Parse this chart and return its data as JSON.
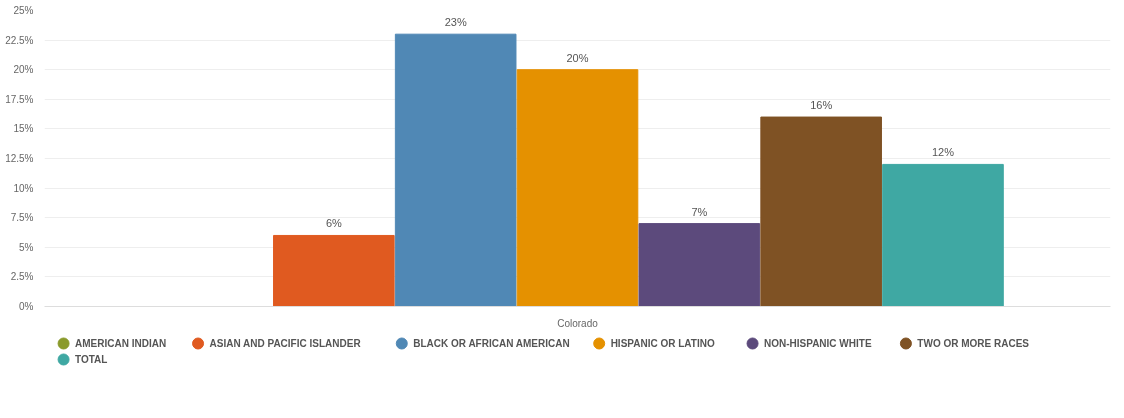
{
  "chart_data": {
    "type": "bar",
    "categories": [
      "Colorado"
    ],
    "series": [
      {
        "name": "AMERICAN INDIAN",
        "color": "#8a9a2b",
        "values": [
          null
        ],
        "value_labels": [
          null
        ]
      },
      {
        "name": "ASIAN AND PACIFIC ISLANDER",
        "color": "#e05a20",
        "values": [
          6
        ],
        "value_labels": [
          "6%"
        ]
      },
      {
        "name": "BLACK OR AFRICAN AMERICAN",
        "color": "#5088b5",
        "values": [
          23
        ],
        "value_labels": [
          "23%"
        ]
      },
      {
        "name": "HISPANIC OR LATINO",
        "color": "#e59100",
        "values": [
          20
        ],
        "value_labels": [
          "20%"
        ]
      },
      {
        "name": "NON-HISPANIC WHITE",
        "color": "#5c4a7c",
        "values": [
          7
        ],
        "value_labels": [
          "7%"
        ]
      },
      {
        "name": "TWO OR MORE RACES",
        "color": "#7f5224",
        "values": [
          16
        ],
        "value_labels": [
          "16%"
        ]
      },
      {
        "name": "TOTAL",
        "color": "#3fa8a3",
        "values": [
          12
        ],
        "value_labels": [
          "12%"
        ]
      }
    ],
    "ylim": [
      0,
      25
    ],
    "yticks": [
      {
        "value": 0,
        "label": "0%"
      },
      {
        "value": 2.5,
        "label": "2.5%"
      },
      {
        "value": 5,
        "label": "5%"
      },
      {
        "value": 7.5,
        "label": "7.5%"
      },
      {
        "value": 10,
        "label": "10%"
      },
      {
        "value": 12.5,
        "label": "12.5%"
      },
      {
        "value": 15,
        "label": "15%"
      },
      {
        "value": 17.5,
        "label": "17.5%"
      },
      {
        "value": 20,
        "label": "20%"
      },
      {
        "value": 22.5,
        "label": "22.5%"
      },
      {
        "value": 25,
        "label": "25%"
      }
    ],
    "grid": "y",
    "legend": "bottom"
  }
}
